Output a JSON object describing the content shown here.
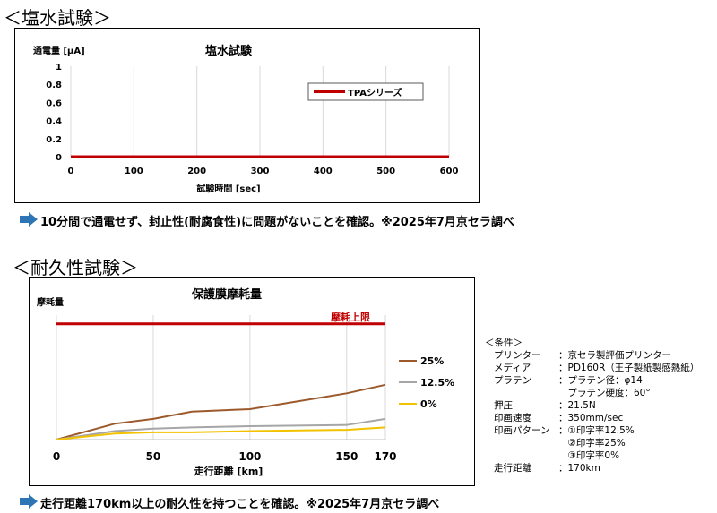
{
  "sections": {
    "salt": {
      "title": "＜塩水試験＞",
      "note": "10分間で通電せず、封止性(耐腐食性)に問題がないことを確認。※2025年7月京セラ調べ"
    },
    "durability": {
      "title": "＜耐久性試験＞",
      "note": "走行距離170km以上の耐久性を持つことを確認。※2025年7月京セラ調べ"
    }
  },
  "colors": {
    "accent_arrow": "#2e75b6",
    "tpa": "#c00000",
    "s25": "#9c5a2c",
    "s125": "#a6a6a6",
    "s0": "#f2c200",
    "limit": "#c00000",
    "grid": "#d9d9d9"
  },
  "chart_data": [
    {
      "type": "line",
      "title": "塩水試験",
      "ylabel": "通電量 [μA]",
      "xlabel": "試験時間 [sec]",
      "xlim": [
        0,
        600
      ],
      "ylim": [
        0,
        1
      ],
      "x_ticks": [
        "0",
        "100",
        "200",
        "300",
        "400",
        "500",
        "600"
      ],
      "y_ticks": [
        "0",
        "0.2",
        "0.4",
        "0.6",
        "0.8",
        "1"
      ],
      "grid": "vertical",
      "legend": "top-right",
      "series": [
        {
          "name": "TPAシリーズ",
          "x": [
            0,
            600
          ],
          "y": [
            0,
            0
          ]
        }
      ]
    },
    {
      "type": "line",
      "title": "保護膜摩耗量",
      "ylabel": "摩耗量",
      "xlabel": "走行距離 [km]",
      "xlim": [
        0,
        170
      ],
      "ylim": [
        0,
        1
      ],
      "x_ticks": [
        "0",
        "50",
        "100",
        "150",
        "170"
      ],
      "grid": "vertical",
      "legend": "right",
      "limit_line": {
        "label": "摩耗上限",
        "value": 0.95
      },
      "series": [
        {
          "name": "25%",
          "x": [
            0,
            30,
            50,
            70,
            100,
            150,
            170
          ],
          "y": [
            0,
            0.13,
            0.17,
            0.23,
            0.25,
            0.38,
            0.45
          ]
        },
        {
          "name": "12.5%",
          "x": [
            0,
            30,
            50,
            70,
            100,
            150,
            170
          ],
          "y": [
            0,
            0.07,
            0.09,
            0.1,
            0.11,
            0.12,
            0.17
          ]
        },
        {
          "name": "0%",
          "x": [
            0,
            30,
            50,
            70,
            100,
            150,
            170
          ],
          "y": [
            0,
            0.05,
            0.06,
            0.06,
            0.07,
            0.08,
            0.1
          ]
        }
      ]
    }
  ],
  "conditions": {
    "header": "＜条件＞",
    "rows": [
      {
        "label": "プリンター",
        "value": "：京セラ製評価プリンター"
      },
      {
        "label": "メディア",
        "value": "：PD160R（王子製紙製感熱紙）"
      },
      {
        "label": "プラテン",
        "value": "：プラテン径：φ14"
      },
      {
        "label": "",
        "value": "　プラテン硬度：60°"
      },
      {
        "label": "押圧",
        "value": "：21.5N"
      },
      {
        "label": "印画速度",
        "value": "：350mm/sec"
      },
      {
        "label": "印画パターン",
        "value": "：①印字率12.5%"
      },
      {
        "label": "",
        "value": "　②印字率25%"
      },
      {
        "label": "",
        "value": "　③印字率0%"
      },
      {
        "label": "走行距離",
        "value": "：170km"
      }
    ]
  }
}
